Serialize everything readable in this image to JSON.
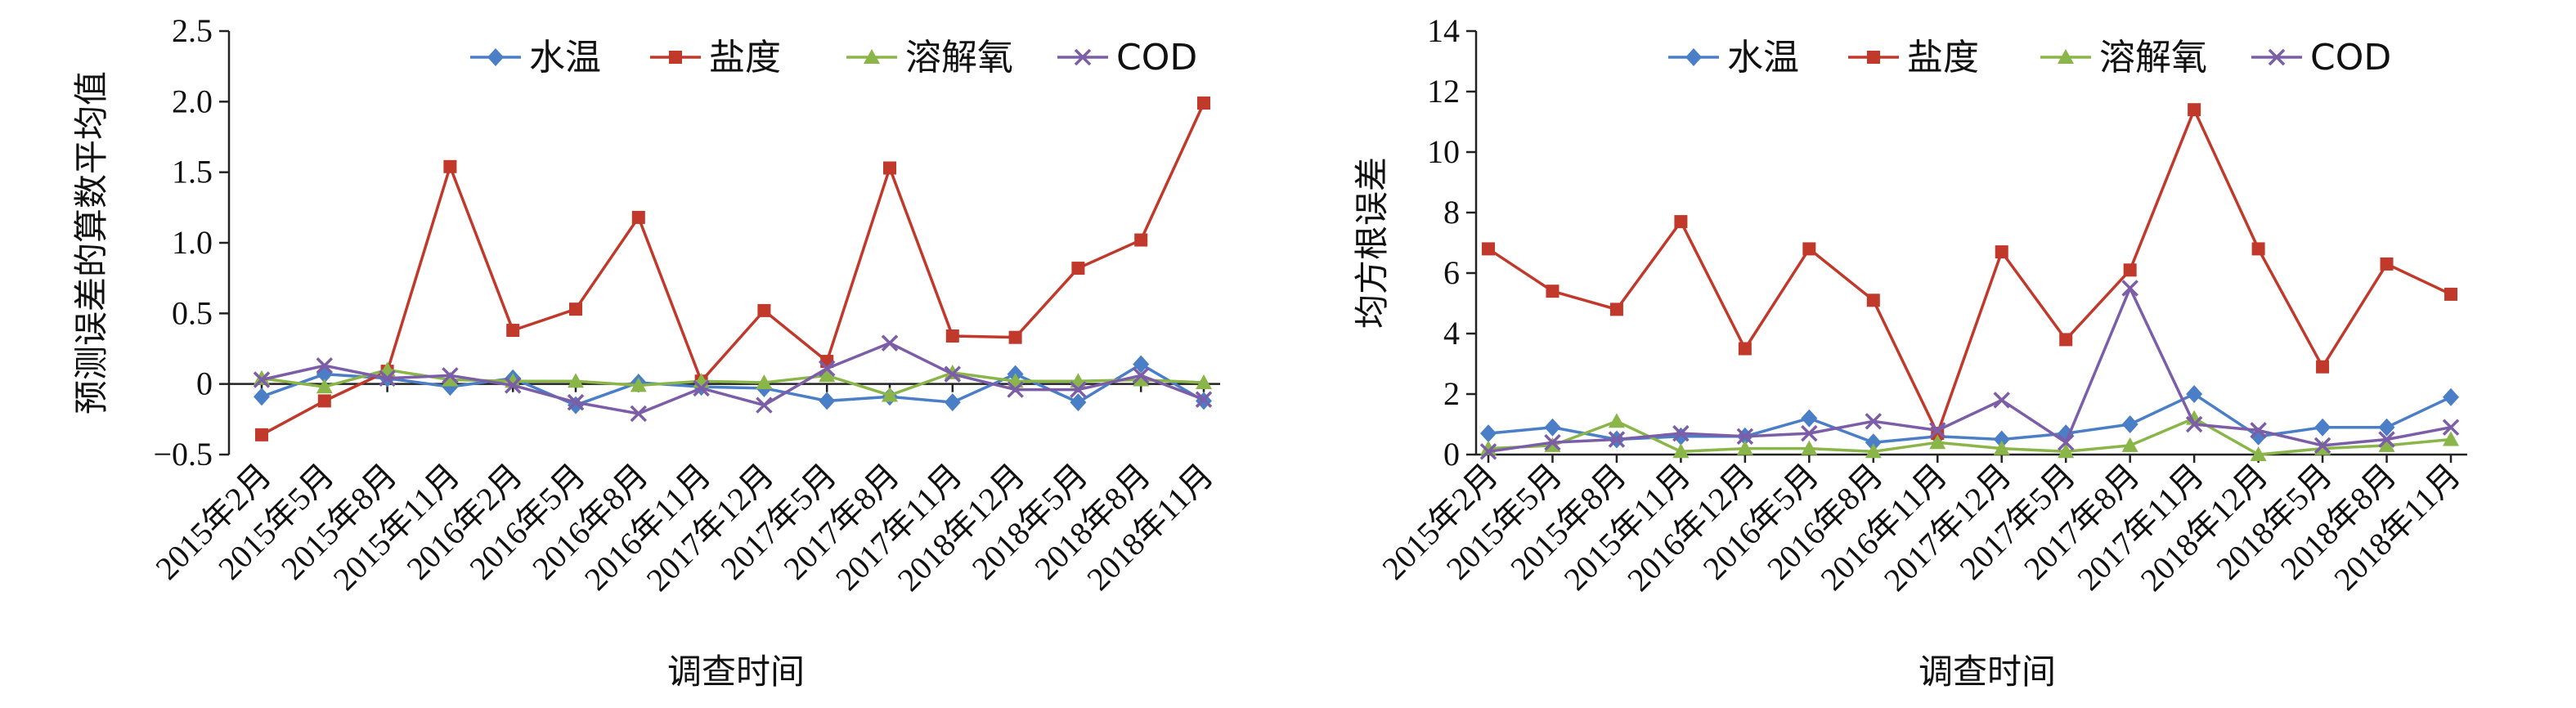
{
  "chart_data": [
    {
      "type": "line",
      "categories": [
        "2015年2月",
        "2015年5月",
        "2015年8月",
        "2015年11月",
        "2016年2月",
        "2016年5月",
        "2016年8月",
        "2016年11月",
        "2017年12月",
        "2017年5月",
        "2017年8月",
        "2017年11月",
        "2018年12月",
        "2018年5月",
        "2018年8月",
        "2018年11月"
      ],
      "xlabel": "调查时间",
      "ylabel": "预测误差的算数平均值",
      "ylim": [
        -0.5,
        2.5
      ],
      "yticks": [
        -0.5,
        0,
        0.5,
        1.0,
        1.5,
        2.0,
        2.5
      ],
      "ytick_labels": [
        "−0.5",
        "0",
        "0.5",
        "1.0",
        "1.5",
        "2.0",
        "2.5"
      ],
      "legend_position": "top-right",
      "grid": false,
      "series": [
        {
          "name": "水温",
          "color": "#4a7ec7",
          "marker": "diamond",
          "values": [
            -0.09,
            0.07,
            0.04,
            -0.02,
            0.04,
            -0.15,
            0.01,
            -0.02,
            -0.03,
            -0.12,
            -0.09,
            -0.13,
            0.07,
            -0.13,
            0.14,
            -0.12
          ]
        },
        {
          "name": "盐度",
          "color": "#c0392b",
          "marker": "square",
          "values": [
            -0.36,
            -0.12,
            0.09,
            1.54,
            0.38,
            0.53,
            1.18,
            0.02,
            0.52,
            0.16,
            1.53,
            0.34,
            0.33,
            0.82,
            1.02,
            1.99
          ]
        },
        {
          "name": "溶解氧",
          "color": "#8ab548",
          "marker": "triangle",
          "values": [
            0.04,
            -0.02,
            0.1,
            0.03,
            0.02,
            0.02,
            -0.01,
            0.02,
            0.01,
            0.06,
            -0.08,
            0.08,
            0.02,
            0.02,
            0.03,
            0.01
          ]
        },
        {
          "name": "COD",
          "color": "#7b5ea7",
          "marker": "x",
          "values": [
            0.03,
            0.13,
            0.04,
            0.06,
            -0.01,
            -0.13,
            -0.21,
            -0.03,
            -0.15,
            0.11,
            0.29,
            0.07,
            -0.04,
            -0.04,
            0.06,
            -0.11
          ]
        }
      ]
    },
    {
      "type": "line",
      "categories": [
        "2015年2月",
        "2015年5月",
        "2015年8月",
        "2015年11月",
        "2016年12月",
        "2016年5月",
        "2016年8月",
        "2016年11月",
        "2017年12月",
        "2017年5月",
        "2017年8月",
        "2017年11月",
        "2018年12月",
        "2018年5月",
        "2018年8月",
        "2018年11月"
      ],
      "xlabel": "调查时间",
      "ylabel": "均方根误差",
      "ylim": [
        0,
        14
      ],
      "yticks": [
        0,
        2,
        4,
        6,
        8,
        10,
        12,
        14
      ],
      "ytick_labels": [
        "0",
        "2",
        "4",
        "6",
        "8",
        "10",
        "12",
        "14"
      ],
      "legend_position": "top-right",
      "grid": false,
      "series": [
        {
          "name": "水温",
          "color": "#4a7ec7",
          "marker": "diamond",
          "values": [
            0.7,
            0.9,
            0.5,
            0.6,
            0.6,
            1.2,
            0.4,
            0.6,
            0.5,
            0.7,
            1.0,
            2.0,
            0.6,
            0.9,
            0.9,
            1.9
          ]
        },
        {
          "name": "盐度",
          "color": "#c0392b",
          "marker": "square",
          "values": [
            6.8,
            5.4,
            4.8,
            7.7,
            3.5,
            6.8,
            5.1,
            0.7,
            6.7,
            3.8,
            6.1,
            11.4,
            6.8,
            2.9,
            6.3,
            5.3
          ]
        },
        {
          "name": "溶解氧",
          "color": "#8ab548",
          "marker": "triangle",
          "values": [
            0.2,
            0.3,
            1.1,
            0.1,
            0.2,
            0.2,
            0.1,
            0.4,
            0.2,
            0.1,
            0.3,
            1.2,
            0.0,
            0.2,
            0.3,
            0.5
          ]
        },
        {
          "name": "COD",
          "color": "#7b5ea7",
          "marker": "x",
          "values": [
            0.1,
            0.4,
            0.5,
            0.7,
            0.6,
            0.7,
            1.1,
            0.8,
            1.8,
            0.4,
            5.5,
            1.0,
            0.8,
            0.3,
            0.5,
            0.9
          ]
        }
      ]
    }
  ]
}
